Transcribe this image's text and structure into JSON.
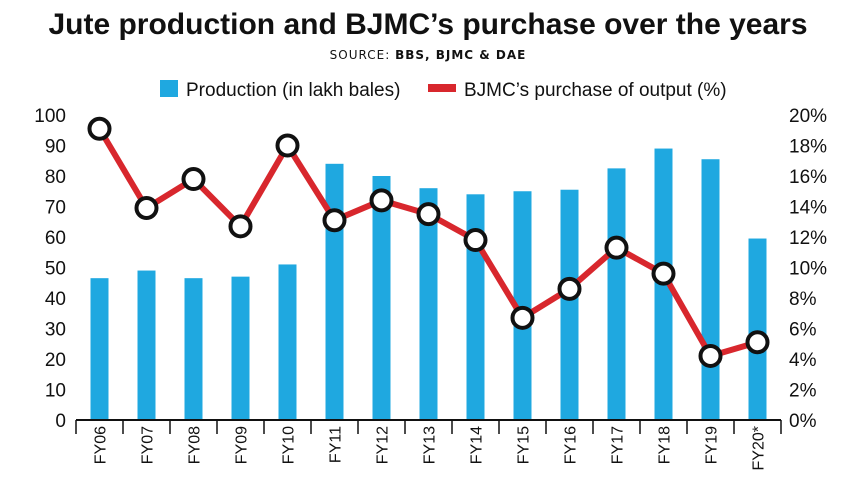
{
  "title": "Jute production and BJMC’s purchase over the years",
  "source_label": "SOURCE:",
  "source_text": "BBS, BJMC & DAE",
  "colors": {
    "bar": "#1fa8e0",
    "line": "#d8272d",
    "marker_fill": "#ffffff",
    "marker_stroke": "#111111",
    "axis": "#111111"
  },
  "chart_data": {
    "type": "bar+line",
    "categories": [
      "FY06",
      "FY07",
      "FY08",
      "FY09",
      "FY10",
      "FY11",
      "FY12",
      "FY13",
      "FY14",
      "FY15",
      "FY16",
      "FY17",
      "FY18",
      "FY19",
      "FY20*"
    ],
    "series": [
      {
        "name": "Production (in lakh bales)",
        "type": "bar",
        "axis": "left",
        "values": [
          46.5,
          49,
          46.5,
          47,
          51,
          84,
          80,
          76,
          74,
          75,
          75.5,
          82.5,
          89,
          85.5,
          59.5
        ]
      },
      {
        "name": "BJMC’s purchase of output (%)",
        "type": "line",
        "axis": "right",
        "values": [
          19.1,
          13.9,
          15.8,
          12.7,
          18.0,
          13.1,
          14.4,
          13.5,
          11.8,
          6.7,
          8.6,
          11.3,
          9.6,
          4.2,
          5.1
        ]
      }
    ],
    "y_left": {
      "min": 0,
      "max": 100,
      "ticks": [
        "0",
        "10",
        "20",
        "30",
        "40",
        "50",
        "60",
        "70",
        "80",
        "90",
        "100"
      ]
    },
    "y_right": {
      "min": 0,
      "max": 20,
      "ticks": [
        "0%",
        "2%",
        "4%",
        "6%",
        "8%",
        "10%",
        "12%",
        "14%",
        "16%",
        "18%",
        "20%"
      ]
    },
    "legend_position": "top-center",
    "grid": false
  }
}
